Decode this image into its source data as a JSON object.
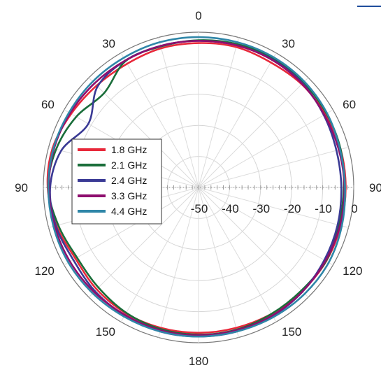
{
  "chart_data": {
    "type": "polar-line",
    "title": "",
    "angle_ticks": [
      {
        "angle": 0,
        "label": "0"
      },
      {
        "angle": 30,
        "label": "30"
      },
      {
        "angle": 60,
        "label": "60"
      },
      {
        "angle": 90,
        "label": "90"
      },
      {
        "angle": 120,
        "label": "120"
      },
      {
        "angle": 150,
        "label": "150"
      },
      {
        "angle": 180,
        "label": "180"
      },
      {
        "angle": 210,
        "label": "150"
      },
      {
        "angle": 240,
        "label": "120"
      },
      {
        "angle": 270,
        "label": "90"
      },
      {
        "angle": 300,
        "label": "60"
      },
      {
        "angle": 330,
        "label": "30"
      }
    ],
    "radial_ticks": [
      {
        "value": -50,
        "label": "-50"
      },
      {
        "value": -40,
        "label": "-40"
      },
      {
        "value": -30,
        "label": "-30"
      },
      {
        "value": -20,
        "label": "-20"
      },
      {
        "value": -10,
        "label": "-10"
      },
      {
        "value": 0,
        "label": "0"
      }
    ],
    "rlim": [
      -50,
      0
    ],
    "angle_range": [
      0,
      360
    ],
    "grid": true,
    "legend_position": "left-middle",
    "series": [
      {
        "name": "1.8 GHz",
        "color": "#e8283a",
        "angles": [
          0,
          15,
          30,
          45,
          60,
          75,
          90,
          105,
          120,
          135,
          150,
          165,
          180,
          195,
          210,
          225,
          240,
          255,
          270,
          285,
          300,
          315,
          330,
          345
        ],
        "values": [
          -3.5,
          -3.2,
          -3.5,
          -3.0,
          -2.8,
          -2.6,
          -2.6,
          -2.6,
          -2.5,
          -2.8,
          -3.0,
          -3.2,
          -3.2,
          -3.2,
          -3.2,
          -3.6,
          -4.2,
          -2.6,
          -1.4,
          -1.3,
          -2.6,
          -3.6,
          -4.0,
          -3.6
        ]
      },
      {
        "name": "2.1 GHz",
        "color": "#1a6e3a",
        "angles": [
          0,
          15,
          30,
          45,
          60,
          75,
          90,
          105,
          120,
          135,
          150,
          165,
          180,
          195,
          210,
          225,
          240,
          255,
          270,
          285,
          300,
          315,
          330,
          345
        ],
        "values": [
          -2.6,
          -2.2,
          -2.0,
          -2.2,
          -2.4,
          -2.6,
          -3.2,
          -3.2,
          -2.6,
          -3.1,
          -3.0,
          -2.6,
          -2.6,
          -2.8,
          -3.4,
          -4.4,
          -4.8,
          -3.2,
          -1.6,
          -2.5,
          -4.5,
          -7.0,
          -3.0,
          -3.0
        ]
      },
      {
        "name": "2.4 GHz",
        "color": "#3a3a95",
        "angles": [
          0,
          15,
          30,
          45,
          60,
          75,
          90,
          105,
          120,
          135,
          150,
          165,
          180,
          195,
          210,
          225,
          240,
          255,
          270,
          285,
          300,
          315,
          330,
          345
        ],
        "values": [
          -2.8,
          -2.6,
          -2.4,
          -2.6,
          -3.4,
          -4.0,
          -4.0,
          -3.6,
          -3.2,
          -2.6,
          -2.2,
          -2.0,
          -2.0,
          -2.0,
          -2.4,
          -2.8,
          -3.4,
          -2.4,
          -2.2,
          -4.2,
          -9.0,
          -4.0,
          -2.8,
          -2.8
        ]
      },
      {
        "name": "3.3 GHz",
        "color": "#8e0e6e",
        "angles": [
          0,
          15,
          30,
          45,
          60,
          75,
          90,
          105,
          120,
          135,
          150,
          165,
          180,
          195,
          210,
          225,
          240,
          255,
          270,
          285,
          300,
          315,
          330,
          345
        ],
        "values": [
          -2.8,
          -2.6,
          -2.6,
          -2.8,
          -3.2,
          -3.2,
          -3.0,
          -2.8,
          -2.8,
          -2.6,
          -2.4,
          -2.4,
          -2.4,
          -2.4,
          -2.6,
          -2.4,
          -2.2,
          -2.0,
          -1.8,
          -1.8,
          -2.2,
          -2.6,
          -2.8,
          -2.8
        ]
      },
      {
        "name": "4.4 GHz",
        "color": "#2f86a8",
        "angles": [
          0,
          15,
          30,
          45,
          60,
          75,
          90,
          105,
          120,
          135,
          150,
          165,
          180,
          195,
          210,
          225,
          240,
          255,
          270,
          285,
          300,
          315,
          330,
          345
        ],
        "values": [
          -1.6,
          -1.6,
          -1.6,
          -1.8,
          -2.2,
          -2.8,
          -2.8,
          -2.2,
          -1.6,
          -1.6,
          -1.8,
          -2.0,
          -2.0,
          -2.0,
          -2.0,
          -1.8,
          -1.6,
          -1.6,
          -1.6,
          -1.6,
          -1.8,
          -1.8,
          -1.8,
          -1.6
        ]
      }
    ]
  }
}
